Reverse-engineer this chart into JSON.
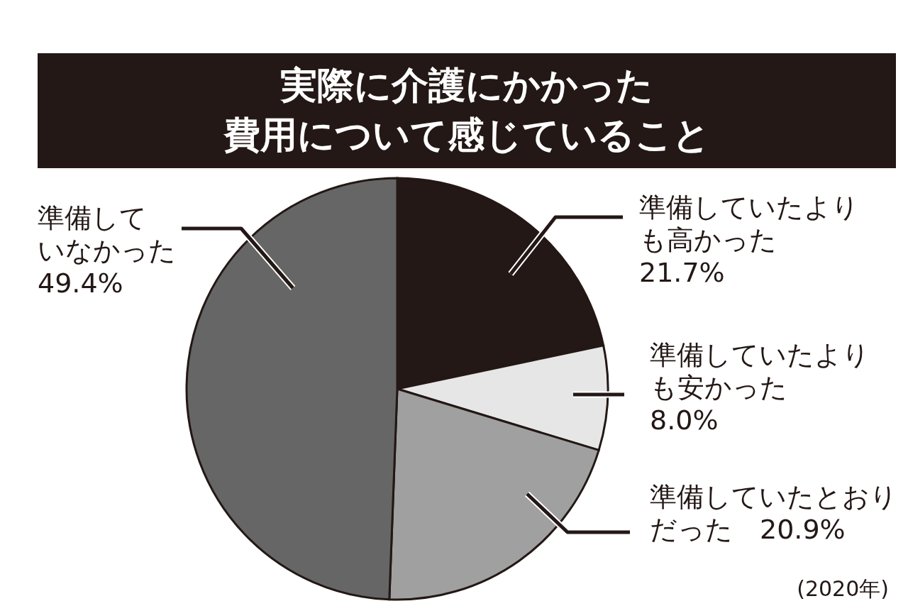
{
  "chart_data": {
    "type": "pie",
    "title": "実際に介護にかかった費用について感じていること",
    "categories": [
      "準備していたよりも高かった",
      "準備していたよりも安かった",
      "準備していたとおりだった",
      "準備していなかった"
    ],
    "values": [
      21.7,
      8.0,
      20.9,
      49.4
    ],
    "colors": [
      "#231815",
      "#e6e6e6",
      "#a0a0a0",
      "#666666"
    ],
    "value_labels": [
      "21.7%",
      "8.0%",
      "20.9%",
      "49.4%"
    ],
    "annotations": [
      "(2020年)"
    ]
  }
}
